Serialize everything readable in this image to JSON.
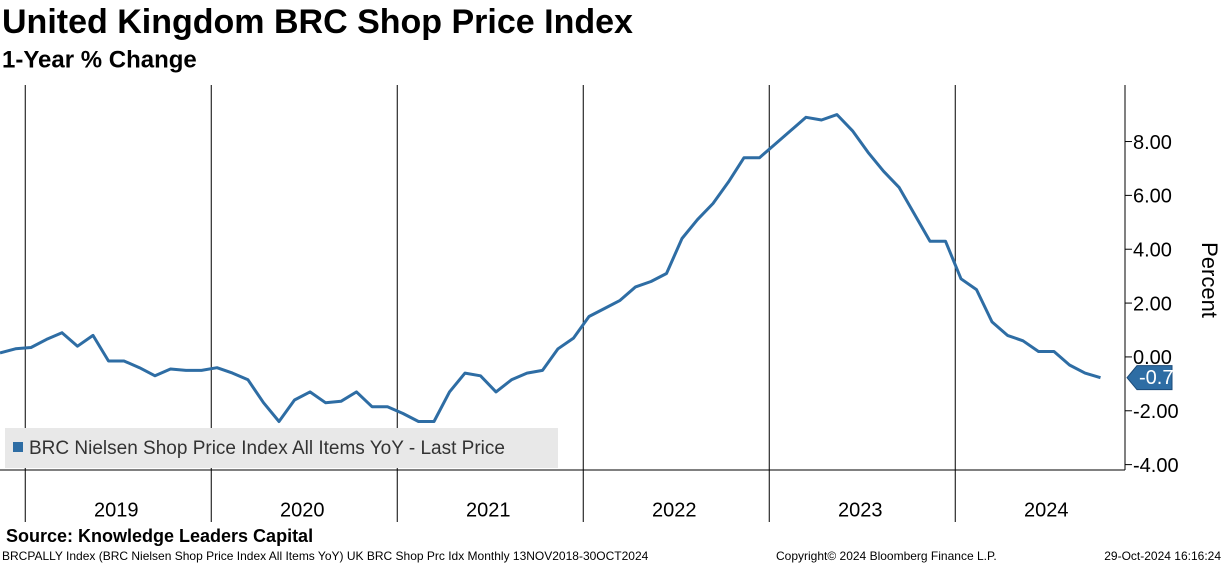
{
  "chart_data": {
    "type": "line",
    "title": "United Kingdom BRC Shop Price Index",
    "subtitle": "1-Year % Change",
    "y_axis_label": "Percent",
    "source": "Source: Knowledge Leaders Capital",
    "footer": [
      "BRCPALLY Index (BRC Nielsen Shop Price Index All Items YoY) UK BRC Shop Prc Idx  Monthly 13NOV2018-30OCT2024",
      "Copyright© 2024 Bloomberg Finance L.P.",
      "29-Oct-2024 16:16:24"
    ],
    "categories": [
      null,
      null,
      "2019",
      null,
      null,
      null,
      null,
      null,
      null,
      null,
      null,
      null,
      null,
      null,
      "2020",
      null,
      null,
      null,
      null,
      null,
      null,
      null,
      null,
      null,
      null,
      null,
      "2021",
      null,
      null,
      null,
      null,
      null,
      null,
      null,
      null,
      null,
      null,
      null,
      "2022",
      null,
      null,
      null,
      null,
      null,
      null,
      null,
      null,
      null,
      null,
      null,
      "2023",
      null,
      null,
      null,
      null,
      null,
      null,
      null,
      null,
      null,
      null,
      null,
      "2024",
      null,
      null,
      null,
      null,
      null,
      null,
      null,
      null,
      null
    ],
    "series": [
      {
        "name": "BRC Nielsen Shop Price Index All Items YoY - Last Price",
        "color": "#2e6da4",
        "values": [
          0.15,
          0.3,
          0.35,
          0.65,
          0.9,
          0.4,
          0.8,
          -0.15,
          -0.15,
          -0.4,
          -0.7,
          -0.45,
          -0.5,
          -0.5,
          -0.4,
          -0.6,
          -0.85,
          -1.7,
          -2.4,
          -1.6,
          -1.3,
          -1.7,
          -1.65,
          -1.3,
          -1.85,
          -1.85,
          -2.1,
          -2.4,
          -2.4,
          -1.3,
          -0.6,
          -0.7,
          -1.3,
          -0.85,
          -0.6,
          -0.5,
          0.3,
          0.7,
          1.5,
          1.8,
          2.1,
          2.6,
          2.8,
          3.1,
          4.4,
          5.1,
          5.7,
          6.5,
          7.4,
          7.4,
          7.9,
          8.4,
          8.9,
          8.8,
          9.0,
          8.4,
          7.6,
          6.9,
          6.3,
          5.3,
          4.3,
          4.3,
          2.9,
          2.5,
          1.3,
          0.8,
          0.6,
          0.2,
          0.2,
          -0.3,
          -0.6,
          -0.77
        ]
      }
    ],
    "ylim": [
      -4.2,
      10.1
    ],
    "yticks": [
      {
        "value": -4,
        "label": "-4.00"
      },
      {
        "value": -2,
        "label": "-2.00"
      },
      {
        "value": 0,
        "label": "0.00"
      },
      {
        "value": 2,
        "label": "2.00"
      },
      {
        "value": 4,
        "label": "4.00"
      },
      {
        "value": 6,
        "label": "6.00"
      },
      {
        "value": 8,
        "label": "8.00"
      }
    ],
    "grid": "x",
    "legend": "lower left"
  }
}
